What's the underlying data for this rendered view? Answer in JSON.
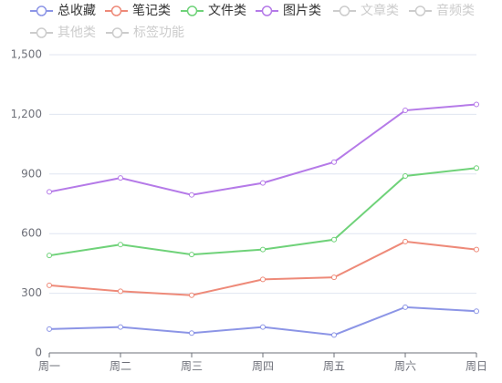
{
  "chart_data": {
    "type": "line",
    "categories": [
      "周一",
      "周二",
      "周三",
      "周四",
      "周五",
      "周六",
      "周日"
    ],
    "series": [
      {
        "name": "总收藏",
        "color": "#8c95e6",
        "values": [
          120,
          130,
          100,
          130,
          90,
          230,
          210
        ]
      },
      {
        "name": "笔记类",
        "color": "#ee8a79",
        "values": [
          340,
          310,
          290,
          370,
          380,
          560,
          520
        ]
      },
      {
        "name": "文件类",
        "color": "#6fd279",
        "values": [
          490,
          545,
          495,
          520,
          570,
          890,
          930
        ]
      },
      {
        "name": "图片类",
        "color": "#b57ae8",
        "values": [
          810,
          880,
          795,
          855,
          960,
          1220,
          1250
        ]
      }
    ],
    "hidden_series": [
      "文章类",
      "音频类",
      "其他类",
      "标签功能"
    ],
    "hidden_color": "#cccccc",
    "ylim": [
      0,
      1500
    ],
    "yticks": [
      0,
      300,
      600,
      900,
      {
        "value": 1200,
        "label": "1,200"
      },
      {
        "value": 1500,
        "label": "1,500"
      }
    ],
    "grid": true
  }
}
